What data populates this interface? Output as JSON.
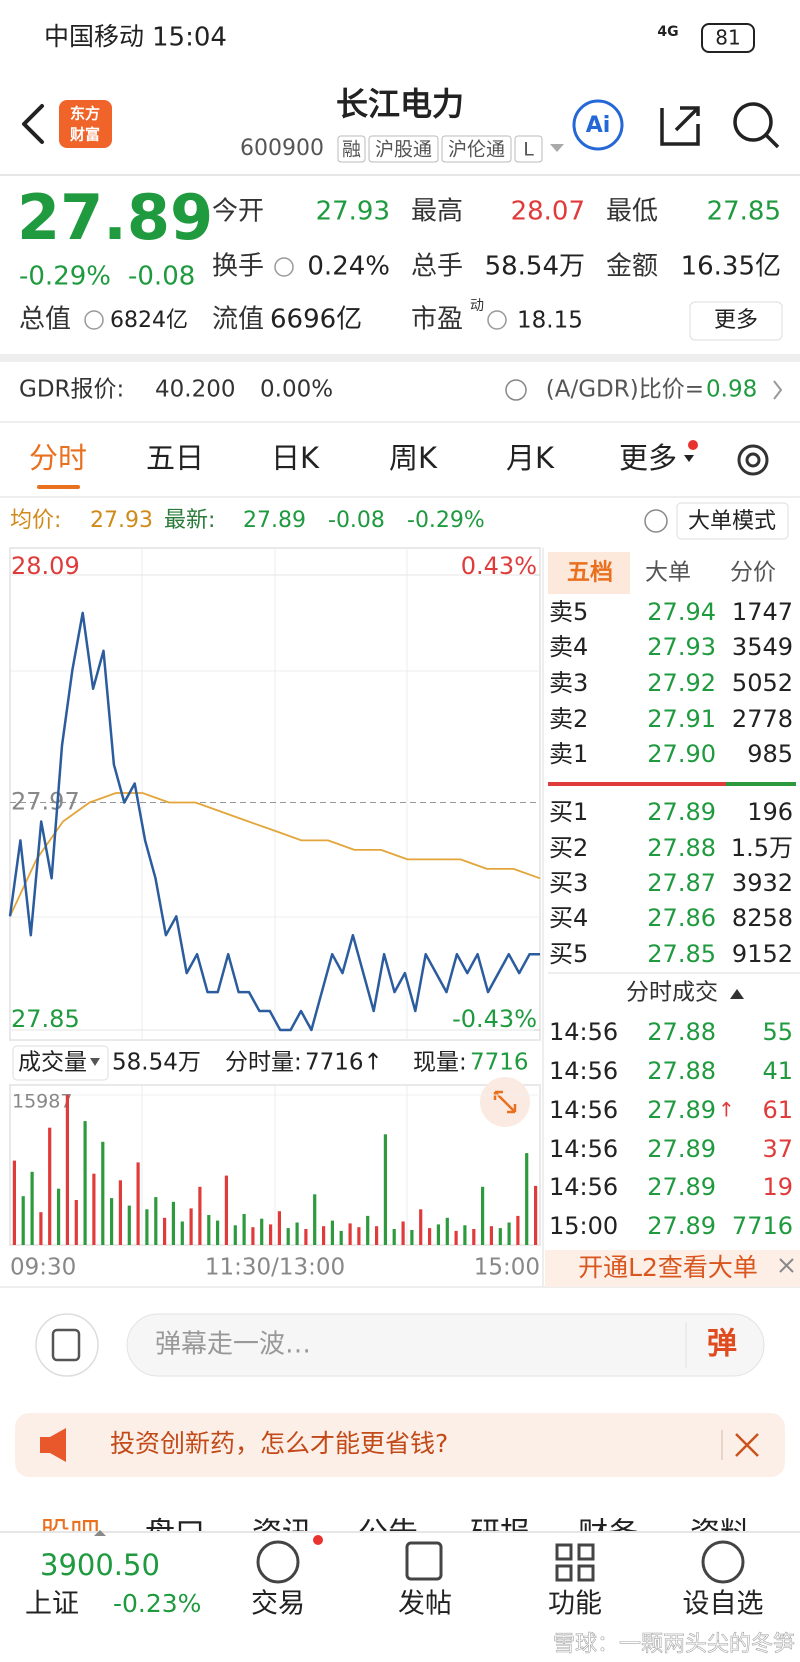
{
  "status_bar": {
    "carrier": "中国移动",
    "time": "15:04",
    "network": "4G",
    "battery": "81"
  },
  "header": {
    "title": "长江电力",
    "code": "600900",
    "tags": [
      "融",
      "沪股通",
      "沪伦通",
      "L"
    ],
    "badge": [
      "东方",
      "财富"
    ],
    "ai": "Ai"
  },
  "quote": {
    "price": "27.89",
    "change_pct": "-0.29%",
    "change": "-0.08",
    "stats": [
      {
        "label": "今开",
        "value": "27.93",
        "color": "#1f9a3f"
      },
      {
        "label": "最高",
        "value": "28.07",
        "color": "#e03b3b"
      },
      {
        "label": "最低",
        "value": "27.85",
        "color": "#1f9a3f"
      },
      {
        "label": "换手",
        "value": "0.24%",
        "color": "#222222"
      },
      {
        "label": "总手",
        "value": "58.54万",
        "color": "#222222"
      },
      {
        "label": "金额",
        "value": "16.35亿",
        "color": "#222222"
      },
      {
        "label": "总值",
        "value": "6824亿",
        "color": "#222222"
      },
      {
        "label": "流值",
        "value": "6696亿",
        "color": "#222222"
      },
      {
        "label": "市盈",
        "sup": "动",
        "value": "18.15",
        "color": "#222222"
      }
    ],
    "more": "更多"
  },
  "gdr": {
    "label": "GDR报价:",
    "price": "40.200",
    "change": "0.00%",
    "ratio_label": "(A/GDR)比价=",
    "ratio": "0.98"
  },
  "tabs": {
    "items": [
      "分时",
      "五日",
      "日K",
      "周K",
      "月K",
      "更多"
    ],
    "active": 0
  },
  "intraday": {
    "legend": {
      "avg_label": "均价:",
      "avg": "27.93",
      "latest_label": "最新:",
      "latest": "27.89",
      "change": "-0.08",
      "change_pct": "-0.29%",
      "mode": "大单模式"
    },
    "ylim": [
      27.85,
      28.09
    ],
    "yticks": [
      28.09,
      27.97,
      27.85
    ],
    "y2lim": [
      -0.43,
      0.43
    ],
    "y2ticks": [
      {
        "value": 0.43,
        "label": "0.43%"
      },
      {
        "value": -0.43,
        "label": "-0.43%"
      }
    ],
    "xtick_labels": [
      "09:30",
      "11:30/13:00",
      "15:00"
    ],
    "price": {
      "color": "#2b5c9e",
      "values": [
        27.91,
        27.95,
        27.9,
        27.96,
        27.93,
        28.0,
        28.04,
        28.07,
        28.03,
        28.05,
        27.99,
        27.97,
        27.98,
        27.95,
        27.93,
        27.9,
        27.91,
        27.88,
        27.89,
        27.87,
        27.87,
        27.89,
        27.87,
        27.87,
        27.86,
        27.86,
        27.85,
        27.85,
        27.86,
        27.85,
        27.87,
        27.89,
        27.88,
        27.9,
        27.88,
        27.86,
        27.89,
        27.87,
        27.88,
        27.86,
        27.89,
        27.88,
        27.87,
        27.89,
        27.88,
        27.89,
        27.87,
        27.88,
        27.89,
        27.88,
        27.89,
        27.89
      ]
    },
    "average": {
      "color": "#e3a53a",
      "values": [
        27.91,
        27.94,
        27.96,
        27.97,
        27.975,
        27.975,
        27.97,
        27.97,
        27.965,
        27.96,
        27.955,
        27.95,
        27.95,
        27.945,
        27.945,
        27.94,
        27.94,
        27.94,
        27.935,
        27.935,
        27.93
      ]
    }
  },
  "volume": {
    "label": "成交量",
    "total": "58.54万",
    "minute_label": "分时量:",
    "minute": "7716↑",
    "current_label": "现量:",
    "current": "7716",
    "ylim": [
      0,
      15987
    ],
    "yticks": [
      15987
    ],
    "values": [
      9000,
      5200,
      7800,
      3500,
      12500,
      6000,
      15987,
      4800,
      13200,
      7600,
      11000,
      5000,
      6900,
      4200,
      8800,
      3800,
      5100,
      2900,
      4600,
      2500,
      3900,
      6200,
      3200,
      2600,
      7400,
      2100,
      3300,
      1900,
      2800,
      2200,
      3600,
      1800,
      2400,
      1700,
      5400,
      2000,
      2600,
      1500,
      2300,
      1900,
      3100,
      2000,
      11800,
      1700,
      2500,
      1600,
      3800,
      1800,
      2200,
      2900,
      1500,
      2100,
      1700,
      6200,
      2000,
      1800,
      2400,
      3100,
      9800,
      6300
    ],
    "colors": [
      "#e03b3b",
      "#2e9a3e",
      "#2e9a3e",
      "#e03b3b",
      "#e03b3b",
      "#2e9a3e",
      "#e03b3b",
      "#e03b3b",
      "#2e9a3e",
      "#e03b3b",
      "#2e9a3e",
      "#2e9a3e",
      "#e03b3b",
      "#2e9a3e",
      "#e03b3b",
      "#2e9a3e",
      "#2e9a3e",
      "#e03b3b",
      "#2e9a3e",
      "#2e9a3e",
      "#e03b3b",
      "#e03b3b",
      "#2e9a3e",
      "#2e9a3e",
      "#e03b3b",
      "#2e9a3e",
      "#2e9a3e",
      "#e03b3b",
      "#2e9a3e",
      "#e03b3b",
      "#e03b3b",
      "#2e9a3e",
      "#2e9a3e",
      "#e03b3b",
      "#2e9a3e",
      "#e03b3b",
      "#2e9a3e",
      "#2e9a3e",
      "#e03b3b",
      "#e03b3b",
      "#2e9a3e",
      "#e03b3b",
      "#2e9a3e",
      "#2e9a3e",
      "#e03b3b",
      "#2e9a3e",
      "#e03b3b",
      "#e03b3b",
      "#2e9a3e",
      "#2e9a3e",
      "#e03b3b",
      "#2e9a3e",
      "#e03b3b",
      "#2e9a3e",
      "#e03b3b",
      "#2e9a3e",
      "#2e9a3e",
      "#e03b3b",
      "#2e9a3e",
      "#e03b3b"
    ]
  },
  "order_book": {
    "tabs": [
      "五档",
      "大单",
      "分价"
    ],
    "asks": [
      {
        "label": "卖5",
        "price": "27.94",
        "volume": "1747"
      },
      {
        "label": "卖4",
        "price": "27.93",
        "volume": "3549"
      },
      {
        "label": "卖3",
        "price": "27.92",
        "volume": "5052"
      },
      {
        "label": "卖2",
        "price": "27.91",
        "volume": "2778"
      },
      {
        "label": "卖1",
        "price": "27.90",
        "volume": "985"
      }
    ],
    "bids": [
      {
        "label": "买1",
        "price": "27.89",
        "volume": "196"
      },
      {
        "label": "买2",
        "price": "27.88",
        "volume": "1.5万"
      },
      {
        "label": "买3",
        "price": "27.87",
        "volume": "3932"
      },
      {
        "label": "买4",
        "price": "27.86",
        "volume": "8258"
      },
      {
        "label": "买5",
        "price": "27.85",
        "volume": "9152"
      }
    ]
  },
  "trades": {
    "title": "分时成交",
    "rows": [
      {
        "time": "14:56",
        "price": "27.88",
        "volume": "55",
        "color": "#1f9a3f"
      },
      {
        "time": "14:56",
        "price": "27.88",
        "volume": "41",
        "color": "#1f9a3f"
      },
      {
        "time": "14:56",
        "price": "27.89",
        "arrow": "↑",
        "volume": "61",
        "color": "#e03b3b"
      },
      {
        "time": "14:56",
        "price": "27.89",
        "volume": "37",
        "color": "#e03b3b"
      },
      {
        "time": "14:56",
        "price": "27.89",
        "volume": "19",
        "color": "#e03b3b"
      },
      {
        "time": "15:00",
        "price": "27.89",
        "volume": "7716",
        "color": "#1f9a3f"
      }
    ],
    "l2_banner": "开通L2查看大单"
  },
  "comment": {
    "placeholder": "弹幕走一波…",
    "button": "弹"
  },
  "ad": {
    "text": "投资创新药，怎么才能更省钱?"
  },
  "section_tabs": [
    "股吧",
    "盘口",
    "资讯",
    "公告",
    "研报",
    "财务",
    "资料"
  ],
  "bottom_nav": {
    "index_value": "3900.50",
    "index_name": "上证",
    "index_change": "-0.23%",
    "items": [
      "交易",
      "发帖",
      "功能",
      "设自选"
    ]
  },
  "watermark": "雪球：一颗两头尖的冬笋"
}
